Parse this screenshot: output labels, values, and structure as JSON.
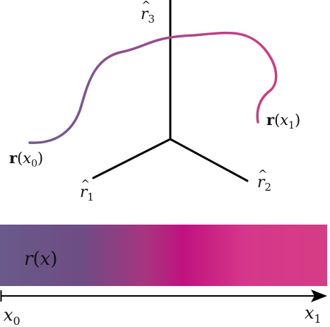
{
  "axes": {
    "r1": {
      "hat": "^",
      "base": "r",
      "sub": "1"
    },
    "r2": {
      "hat": "^",
      "base": "r",
      "sub": "2"
    },
    "r3": {
      "hat": "^",
      "base": "r",
      "sub": "3"
    }
  },
  "curve": {
    "start_label": {
      "vec": "r",
      "open": "(",
      "var": "x",
      "sub": "0",
      "close": ")"
    },
    "end_label": {
      "vec": "r",
      "open": "(",
      "var": "x",
      "sub": "1",
      "close": ")"
    },
    "start_color": "#6f5a8e",
    "end_color": "#d23a82"
  },
  "bar": {
    "label": {
      "func": "r",
      "open": "(",
      "var": "x",
      "close": ")"
    },
    "colors": [
      "#6a5a8a",
      "#6e4c84",
      "#a8347f",
      "#c0127f",
      "#d6378a",
      "#d63c86"
    ],
    "label_color": "#ffffff"
  },
  "x_axis": {
    "start_label": {
      "var": "x",
      "sub": "0"
    },
    "end_label": {
      "var": "x",
      "sub": "1"
    }
  }
}
